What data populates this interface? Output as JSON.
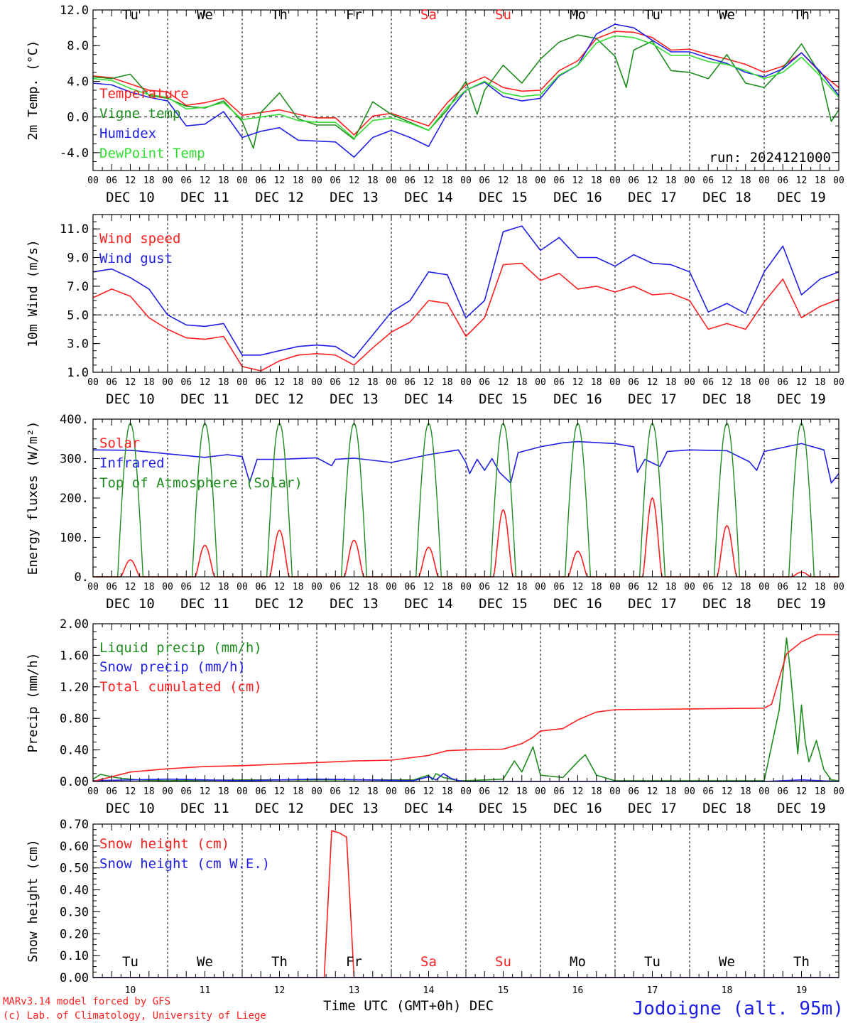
{
  "colors": {
    "red": "#ff2020",
    "green": "#1e8c1e",
    "blue": "#2020e6",
    "lightgreen": "#33dd33",
    "black": "#000000"
  },
  "day_abbr": [
    "Tu",
    "We",
    "Th",
    "Fr",
    "Sa",
    "Su",
    "Mo",
    "Tu",
    "We",
    "Th"
  ],
  "weekend_days": [
    4,
    5
  ],
  "date_labels": [
    "DEC 10",
    "DEC 11",
    "DEC 12",
    "DEC 13",
    "DEC 14",
    "DEC 15",
    "DEC 16",
    "DEC 17",
    "DEC 18",
    "DEC 19"
  ],
  "hour_labels": [
    "00",
    "06",
    "12",
    "18"
  ],
  "final_hour_label": "00",
  "bottom_day_numbers": [
    "10",
    "11",
    "12",
    "13",
    "14",
    "15",
    "16",
    "17",
    "18",
    "19"
  ],
  "footer": {
    "model": "MARv3.14 model forced by GFS",
    "lab": "(c) Lab. of Climatology, University of Liege",
    "xlabel": "Time UTC (GMT+0h) DEC",
    "station": "Jodoigne (alt. 95m)"
  },
  "chart_data": [
    {
      "type": "line",
      "ylabel": "2m Temp. (°C)",
      "ylim": [
        -6,
        12
      ],
      "yticks": [
        12,
        8,
        4,
        0,
        -4
      ],
      "ytick_labels": [
        "12.0",
        "8.0",
        "4.0",
        "0.0",
        "-4.0"
      ],
      "ref_line": 0,
      "annotation": "run: 2024121000",
      "x_unit": "days since 2024-12-10 00 UTC",
      "legend": [
        "Temperature",
        "Vigne temp",
        "Humidex",
        "DewPoint Temp"
      ],
      "series": [
        {
          "name": "Temperature",
          "color": "red",
          "x": [
            0,
            0.25,
            0.5,
            0.75,
            1,
            1.25,
            1.5,
            1.75,
            2,
            2.25,
            2.5,
            2.75,
            3,
            3.25,
            3.5,
            3.75,
            4,
            4.25,
            4.5,
            4.75,
            5,
            5.25,
            5.5,
            5.75,
            6,
            6.25,
            6.5,
            6.75,
            7,
            7.25,
            7.5,
            7.75,
            8,
            8.25,
            8.5,
            8.75,
            9,
            9.25,
            9.5,
            9.75,
            10
          ],
          "values": [
            4.6,
            4.4,
            3.7,
            3.0,
            2.8,
            1.3,
            1.6,
            2.1,
            0.2,
            0.5,
            0.8,
            0.3,
            -0.1,
            -0.1,
            -2.0,
            0.1,
            0.4,
            -0.3,
            -1.0,
            1.6,
            3.6,
            4.5,
            3.3,
            2.9,
            3.0,
            5.2,
            6.3,
            8.8,
            9.6,
            9.5,
            8.9,
            7.5,
            7.6,
            7.0,
            6.5,
            5.9,
            5.0,
            5.7,
            7.2,
            5.0,
            3.3
          ]
        },
        {
          "name": "Vigne temp",
          "color": "green",
          "x": [
            0,
            0.25,
            0.5,
            0.75,
            1,
            1.25,
            1.5,
            1.75,
            2,
            2.15,
            2.25,
            2.5,
            2.75,
            3,
            3.25,
            3.5,
            3.75,
            4,
            4.25,
            4.5,
            4.75,
            5,
            5.15,
            5.25,
            5.5,
            5.75,
            6,
            6.25,
            6.5,
            6.75,
            7,
            7.15,
            7.25,
            7.5,
            7.75,
            8,
            8.25,
            8.5,
            8.75,
            9,
            9.25,
            9.5,
            9.75,
            9.9,
            10
          ],
          "values": [
            4.5,
            4.3,
            4.8,
            2.4,
            2.1,
            1.2,
            1.0,
            1.8,
            -0.5,
            -3.5,
            0.5,
            2.7,
            -0.2,
            -0.9,
            -0.9,
            -2.5,
            1.7,
            0.3,
            -0.6,
            -1.5,
            0.8,
            4.0,
            0.3,
            3.0,
            5.8,
            3.8,
            6.5,
            8.4,
            9.2,
            8.8,
            6.8,
            3.3,
            7.5,
            8.5,
            5.2,
            5.0,
            4.3,
            7.0,
            3.8,
            3.3,
            5.5,
            8.2,
            4.8,
            -0.5,
            0.8
          ]
        },
        {
          "name": "Humidex",
          "color": "blue",
          "x": [
            0,
            0.25,
            0.5,
            0.75,
            1,
            1.25,
            1.5,
            1.75,
            2,
            2.25,
            2.5,
            2.75,
            3,
            3.25,
            3.5,
            3.75,
            4,
            4.25,
            4.5,
            4.75,
            5,
            5.25,
            5.5,
            5.75,
            6,
            6.25,
            6.5,
            6.75,
            7,
            7.25,
            7.5,
            7.75,
            8,
            8.25,
            8.5,
            8.75,
            9,
            9.25,
            9.5,
            9.75,
            10
          ],
          "values": [
            3.8,
            3.6,
            2.8,
            2.2,
            1.8,
            -1.0,
            -0.8,
            0.6,
            -2.3,
            -1.6,
            -1.2,
            -2.6,
            -2.7,
            -2.8,
            -4.5,
            -2.3,
            -1.5,
            -2.3,
            -3.3,
            0.4,
            3.0,
            3.9,
            2.3,
            1.8,
            2.1,
            4.6,
            5.8,
            9.3,
            10.4,
            10.0,
            8.6,
            7.3,
            7.3,
            6.6,
            6.0,
            5.0,
            4.5,
            5.4,
            7.2,
            5.1,
            2.4
          ]
        },
        {
          "name": "DewPoint Temp",
          "color": "lightgreen",
          "x": [
            0,
            0.25,
            0.5,
            0.75,
            1,
            1.25,
            1.5,
            1.75,
            2,
            2.25,
            2.5,
            2.75,
            3,
            3.25,
            3.5,
            3.75,
            4,
            4.25,
            4.5,
            4.75,
            5,
            5.25,
            5.5,
            5.75,
            6,
            6.25,
            6.5,
            6.75,
            7,
            7.25,
            7.5,
            7.75,
            8,
            8.25,
            8.5,
            8.75,
            9,
            9.25,
            9.5,
            9.75,
            10
          ],
          "values": [
            4.3,
            4.1,
            3.2,
            2.5,
            2.2,
            0.9,
            1.1,
            1.6,
            -0.3,
            0.0,
            0.3,
            -0.4,
            -0.6,
            -0.6,
            -2.4,
            -0.4,
            -0.1,
            -0.7,
            -1.5,
            1.1,
            3.0,
            4.0,
            2.7,
            2.3,
            2.5,
            4.7,
            5.8,
            8.3,
            9.1,
            8.9,
            8.2,
            6.9,
            6.9,
            6.2,
            5.9,
            5.2,
            4.3,
            5.0,
            6.7,
            4.6,
            2.2
          ]
        }
      ]
    },
    {
      "type": "line",
      "ylabel": "10m Wind (m/s)",
      "ylim": [
        1,
        12
      ],
      "yticks": [
        11,
        9,
        7,
        5,
        3,
        1
      ],
      "ytick_labels": [
        "11.0",
        "9.0",
        "7.0",
        "5.0",
        "3.0",
        "1.0"
      ],
      "ref_line": 5,
      "x_unit": "days since 2024-12-10 00 UTC",
      "legend": [
        "Wind speed",
        "Wind gust"
      ],
      "series": [
        {
          "name": "Wind speed",
          "color": "red",
          "x": [
            0,
            0.25,
            0.5,
            0.75,
            1,
            1.25,
            1.5,
            1.75,
            2,
            2.25,
            2.5,
            2.75,
            3,
            3.25,
            3.5,
            3.75,
            4,
            4.25,
            4.5,
            4.75,
            5,
            5.25,
            5.5,
            5.75,
            6,
            6.25,
            6.5,
            6.75,
            7,
            7.25,
            7.5,
            7.75,
            8,
            8.25,
            8.5,
            8.75,
            9,
            9.25,
            9.5,
            9.75,
            10
          ],
          "values": [
            6.2,
            6.8,
            6.3,
            4.8,
            4.0,
            3.4,
            3.3,
            3.5,
            1.4,
            1.1,
            1.8,
            2.2,
            2.3,
            2.2,
            1.5,
            2.7,
            3.8,
            4.5,
            6.0,
            5.8,
            3.5,
            4.8,
            8.5,
            8.6,
            7.4,
            7.9,
            6.8,
            7.0,
            6.6,
            7.0,
            6.4,
            6.5,
            6.0,
            4.0,
            4.4,
            4.0,
            5.9,
            7.5,
            4.8,
            5.6,
            6.1
          ]
        },
        {
          "name": "Wind gust",
          "color": "blue",
          "x": [
            0,
            0.25,
            0.5,
            0.75,
            1,
            1.25,
            1.5,
            1.75,
            2,
            2.25,
            2.5,
            2.75,
            3,
            3.25,
            3.5,
            3.75,
            4,
            4.25,
            4.5,
            4.75,
            5,
            5.25,
            5.5,
            5.75,
            6,
            6.25,
            6.5,
            6.75,
            7,
            7.25,
            7.5,
            7.75,
            8,
            8.25,
            8.5,
            8.75,
            9,
            9.25,
            9.5,
            9.75,
            10
          ],
          "values": [
            8.0,
            8.2,
            7.6,
            6.8,
            5.0,
            4.3,
            4.2,
            4.4,
            2.2,
            2.2,
            2.5,
            2.8,
            2.9,
            2.8,
            2.0,
            3.6,
            5.2,
            6.0,
            8.0,
            7.8,
            4.8,
            6.0,
            10.8,
            11.2,
            9.5,
            10.4,
            9.0,
            9.0,
            8.4,
            9.2,
            8.6,
            8.5,
            8.0,
            5.2,
            5.8,
            5.1,
            8.0,
            9.8,
            6.4,
            7.5,
            8.0
          ]
        }
      ]
    },
    {
      "type": "line",
      "ylabel": "Energy fluxes (W/m²)",
      "ylim": [
        0,
        400
      ],
      "yticks": [
        400,
        300,
        200,
        100,
        0
      ],
      "ytick_labels": [
        "400.",
        "300.",
        "200.",
        "100.",
        "0."
      ],
      "x_unit": "days since 2024-12-10 00 UTC",
      "legend": [
        "Solar",
        "Infrared",
        "Top of Atmosphere (Solar)"
      ],
      "solar_peaks_by_day": [
        43,
        80,
        118,
        93,
        75,
        170,
        65,
        200,
        130,
        12
      ],
      "toa_peak": 390,
      "series": [
        {
          "name": "Infrared",
          "color": "blue",
          "x": [
            0,
            0.5,
            1,
            1.5,
            1.8,
            2,
            2.1,
            2.2,
            2.5,
            3,
            3.2,
            3.25,
            3.5,
            4,
            4.5,
            4.9,
            5,
            5.05,
            5.15,
            5.25,
            5.35,
            5.45,
            5.6,
            5.7,
            6,
            6.3,
            6.5,
            7,
            7.25,
            7.3,
            7.4,
            7.6,
            7.7,
            8,
            8.5,
            8.8,
            8.9,
            9,
            9.5,
            9.8,
            9.9,
            10
          ],
          "values": [
            322,
            321,
            312,
            303,
            310,
            305,
            240,
            298,
            298,
            302,
            282,
            298,
            301,
            290,
            310,
            322,
            290,
            262,
            298,
            270,
            300,
            265,
            238,
            315,
            330,
            340,
            343,
            338,
            330,
            265,
            298,
            280,
            318,
            322,
            320,
            292,
            270,
            318,
            338,
            322,
            238,
            262
          ]
        }
      ]
    },
    {
      "type": "line",
      "ylabel": "Precip (mm/h)",
      "ylim": [
        0,
        2.0
      ],
      "yticks": [
        2.0,
        1.6,
        1.2,
        0.8,
        0.4,
        0
      ],
      "ytick_labels": [
        "2.00",
        "1.60",
        "1.20",
        "0.80",
        "0.40",
        "0.00"
      ],
      "x_unit": "days since 2024-12-10 00 UTC",
      "legend": [
        "Liquid precip (mm/h)",
        "Snow precip (mm/h)",
        "Total cumulated (cm)"
      ],
      "series": [
        {
          "name": "Liquid precip (mm/h)",
          "color": "green",
          "x": [
            0,
            0.1,
            0.3,
            0.6,
            1,
            2,
            3,
            4.3,
            4.5,
            4.55,
            4.6,
            4.7,
            4.8,
            4.9,
            5,
            5.5,
            5.65,
            5.75,
            5.9,
            6,
            6.3,
            6.5,
            6.6,
            6.75,
            7,
            8,
            9,
            9.2,
            9.3,
            9.35,
            9.45,
            9.5,
            9.55,
            9.6,
            9.7,
            9.8,
            9.9,
            10
          ],
          "values": [
            0.03,
            0.09,
            0.05,
            0.02,
            0.01,
            0.02,
            0.02,
            0.02,
            0.08,
            0.02,
            0.1,
            0.05,
            0.03,
            0.01,
            0.01,
            0.03,
            0.26,
            0.12,
            0.44,
            0.08,
            0.05,
            0.25,
            0.34,
            0.08,
            0.01,
            0.01,
            0.01,
            0.9,
            1.82,
            1.4,
            0.35,
            0.97,
            0.5,
            0.25,
            0.52,
            0.15,
            0.02,
            0.01
          ]
        },
        {
          "name": "Snow precip (mm/h)",
          "color": "blue",
          "x": [
            0,
            1,
            2,
            3,
            4.3,
            4.5,
            4.6,
            4.7,
            4.8,
            4.9,
            5,
            6,
            7,
            8,
            9,
            9.5,
            10
          ],
          "values": [
            0.01,
            0.03,
            0.01,
            0.03,
            0.01,
            0.06,
            0.02,
            0.1,
            0.04,
            0.01,
            0.0,
            0.0,
            0.0,
            0.0,
            0.0,
            0.02,
            0.0
          ]
        },
        {
          "name": "Total cumulated (cm)",
          "color": "red",
          "x": [
            0,
            0.5,
            1,
            1.5,
            2,
            2.5,
            3,
            3.5,
            4,
            4.5,
            4.75,
            5,
            5.5,
            5.75,
            5.9,
            6,
            6.3,
            6.5,
            6.75,
            7,
            8,
            9,
            9.1,
            9.2,
            9.3,
            9.5,
            9.7,
            10
          ],
          "values": [
            0.0,
            0.12,
            0.16,
            0.19,
            0.2,
            0.22,
            0.24,
            0.26,
            0.27,
            0.33,
            0.39,
            0.4,
            0.41,
            0.48,
            0.56,
            0.64,
            0.67,
            0.78,
            0.88,
            0.91,
            0.92,
            0.93,
            0.98,
            1.3,
            1.62,
            1.77,
            1.86,
            1.86
          ]
        }
      ]
    },
    {
      "type": "line",
      "ylabel": "Snow height (cm)",
      "ylim": [
        0,
        0.7
      ],
      "yticks": [
        0.7,
        0.6,
        0.5,
        0.4,
        0.3,
        0.2,
        0.1,
        0.0
      ],
      "ytick_labels": [
        "0.70",
        "0.60",
        "0.50",
        "0.40",
        "0.30",
        "0.20",
        "0.10",
        "0.00"
      ],
      "x_unit": "days since 2024-12-10 00 UTC",
      "legend": [
        "Snow height (cm)",
        "Snow height (cm W.E.)"
      ],
      "series": [
        {
          "name": "Snow height (cm)",
          "color": "red",
          "x": [
            0,
            3.1,
            3.2,
            3.3,
            3.4,
            3.5,
            10
          ],
          "values": [
            0,
            0,
            0.67,
            0.66,
            0.64,
            0,
            0
          ]
        },
        {
          "name": "Snow height (cm W.E.)",
          "color": "blue",
          "x": [
            0,
            10
          ],
          "values": [
            0,
            0
          ]
        }
      ]
    }
  ]
}
